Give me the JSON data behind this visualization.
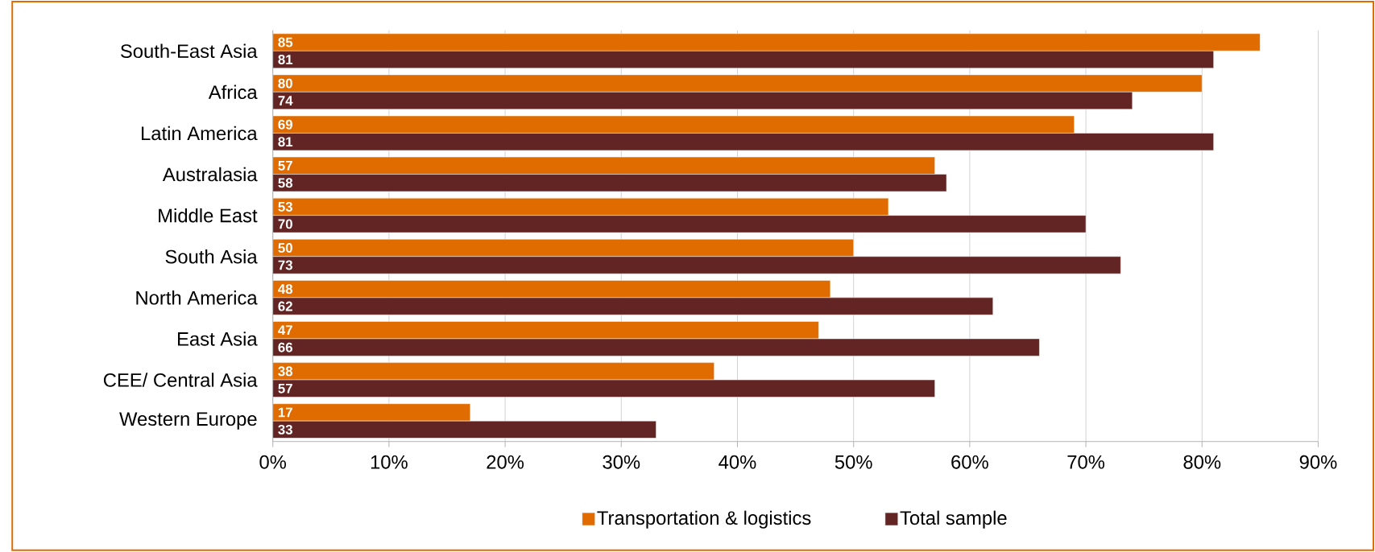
{
  "chart_data": {
    "type": "bar",
    "orientation": "horizontal",
    "categories": [
      "South-East Asia",
      "Africa",
      "Latin America",
      "Australasia",
      "Middle East",
      "South Asia",
      "North America",
      "East Asia",
      "CEE/ Central Asia",
      "Western Europe"
    ],
    "series": [
      {
        "name": "Transportation & logistics",
        "color": "#e06c00",
        "values": [
          85,
          80,
          69,
          57,
          53,
          50,
          48,
          47,
          38,
          17
        ]
      },
      {
        "name": "Total sample",
        "color": "#632523",
        "values": [
          81,
          74,
          81,
          58,
          70,
          73,
          62,
          66,
          57,
          33
        ]
      }
    ],
    "xlim": [
      0,
      90
    ],
    "xticks": [
      {
        "value": 0,
        "label": "0%"
      },
      {
        "value": 10,
        "label": "10%"
      },
      {
        "value": 20,
        "label": "20%"
      },
      {
        "value": 30,
        "label": "30%"
      },
      {
        "value": 40,
        "label": "40%"
      },
      {
        "value": 50,
        "label": "50%"
      },
      {
        "value": 60,
        "label": "60%"
      },
      {
        "value": 70,
        "label": "70%"
      },
      {
        "value": 80,
        "label": "80%"
      },
      {
        "value": 90,
        "label": "90%"
      }
    ],
    "grid": "x",
    "legend": "bottom",
    "data_labels": true
  }
}
